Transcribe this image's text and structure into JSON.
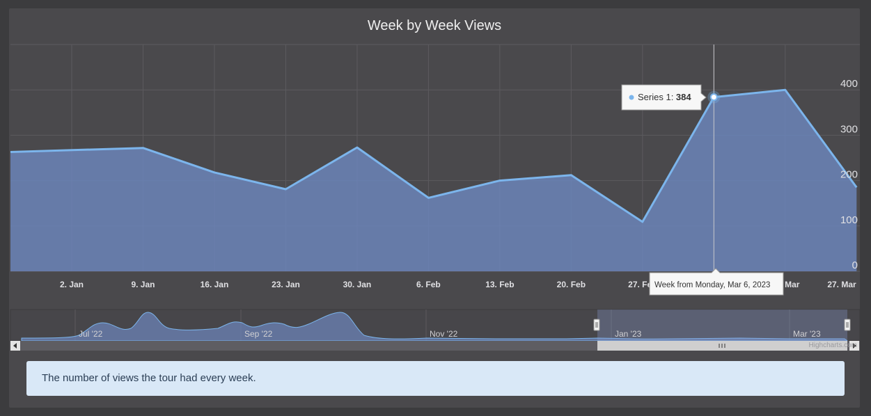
{
  "chart_data": {
    "type": "area",
    "title": "Week by Week Views",
    "description": "The number of views the tour had every week.",
    "credit": "Highcharts.com",
    "x_tick_labels": [
      "2. Jan",
      "9. Jan",
      "16. Jan",
      "23. Jan",
      "30. Jan",
      "6. Feb",
      "13. Feb",
      "20. Feb",
      "27. Feb",
      "6. Mar",
      "13. Mar",
      "27. Mar"
    ],
    "y_ticks": [
      0,
      100,
      200,
      300,
      400
    ],
    "ylim": [
      0,
      500
    ],
    "grid": true,
    "series": [
      {
        "name": "Series 1",
        "color": "#7cb5ec",
        "points": [
          {
            "x": "2022-12-26",
            "y": 263
          },
          {
            "x": "2023-01-09",
            "y": 272
          },
          {
            "x": "2023-01-16",
            "y": 218
          },
          {
            "x": "2023-01-23",
            "y": 181
          },
          {
            "x": "2023-01-30",
            "y": 273
          },
          {
            "x": "2023-02-06",
            "y": 162
          },
          {
            "x": "2023-02-13",
            "y": 200
          },
          {
            "x": "2023-02-20",
            "y": 212
          },
          {
            "x": "2023-02-27",
            "y": 109
          },
          {
            "x": "2023-03-06",
            "y": 384
          },
          {
            "x": "2023-03-13",
            "y": 400
          },
          {
            "x": "2023-03-20",
            "y": 185
          }
        ]
      }
    ],
    "tooltip": {
      "series_label": "Series 1: ",
      "value": "384",
      "header": "Week from Monday, Mar 6, 2023"
    },
    "navigator": {
      "labels": [
        "Jul '22",
        "Sep '22",
        "Nov '22",
        "Jan '23",
        "Mar '23"
      ]
    }
  }
}
